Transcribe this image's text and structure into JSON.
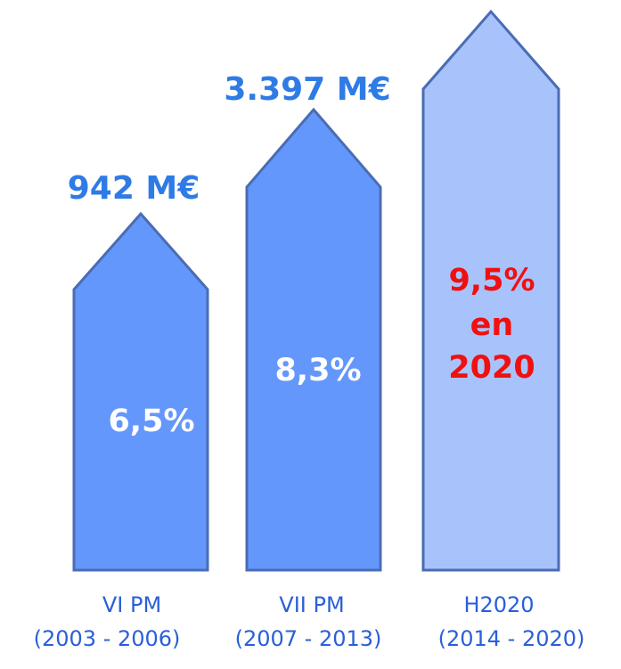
{
  "columns": [
    {
      "name": "VI PM",
      "period": "(2003 - 2006)",
      "amount": "942 M€",
      "share": "6,5%"
    },
    {
      "name": "VII PM",
      "period": "(2007 - 2013)",
      "amount": "3.397 M€",
      "share": "8,3%"
    },
    {
      "name": "H2020",
      "period": "(2014 - 2020)",
      "share": [
        "9,5%",
        "en",
        "2020"
      ]
    }
  ]
}
